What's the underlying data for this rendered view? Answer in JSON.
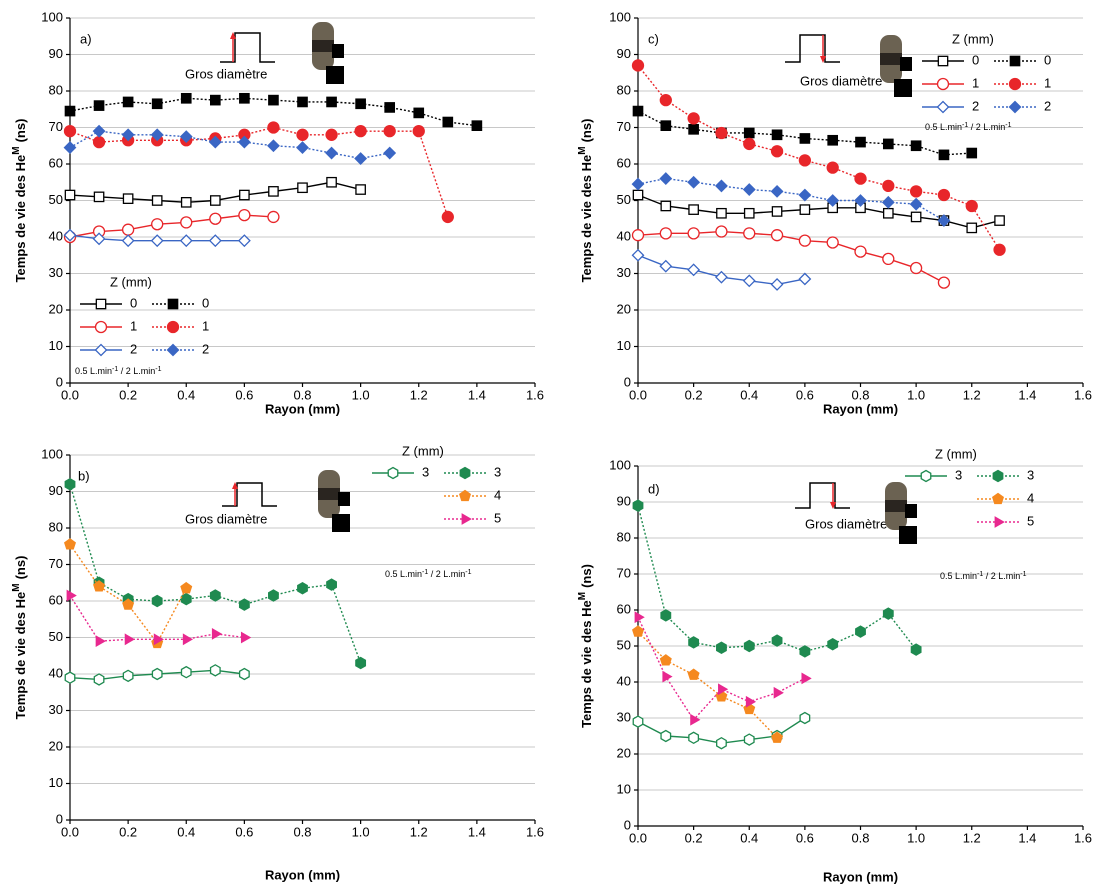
{
  "chart_data": [
    {
      "type": "line",
      "panel_label": "a)",
      "annotation": "Gros diamètre",
      "xlabel": "Rayon (mm)",
      "ylabel": "Temps de vie des He",
      "ylabel_superscript": "M",
      "ylabel_suffix": "(ns)",
      "legend_title": "Z (mm)",
      "note": [
        "0.5 L.min",
        "-1",
        " / 2 L.min",
        "-1"
      ],
      "pulse": "up",
      "xlim": [
        0,
        1.6
      ],
      "xticks": [
        {
          "value": 0,
          "label": "0.0"
        },
        0.2,
        0.4,
        0.6,
        0.8,
        {
          "value": 1,
          "label": "1.0"
        },
        1.2,
        1.4,
        1.6
      ],
      "ylim": [
        0,
        100
      ],
      "yticks": [
        0,
        10,
        20,
        30,
        40,
        50,
        60,
        70,
        80,
        90,
        100
      ],
      "grid": true,
      "series": [
        {
          "name": "0",
          "color": "#000000",
          "marker": "square",
          "filled": false,
          "dashed": false,
          "x": [
            0,
            0.1,
            0.2,
            0.3,
            0.4,
            0.5,
            0.6,
            0.7,
            0.8,
            0.9,
            1.0
          ],
          "values": [
            51.5,
            51,
            50.5,
            50,
            49.5,
            50,
            51.5,
            52.5,
            53.5,
            55,
            53
          ]
        },
        {
          "name": "0",
          "color": "#000000",
          "marker": "square",
          "filled": true,
          "dashed": true,
          "x": [
            0,
            0.1,
            0.2,
            0.3,
            0.4,
            0.5,
            0.6,
            0.7,
            0.8,
            0.9,
            1.0,
            1.1,
            1.2,
            1.3,
            1.4
          ],
          "values": [
            74.5,
            76,
            77,
            76.5,
            78,
            77.5,
            78,
            77.5,
            77,
            77,
            76.5,
            75.5,
            74,
            71.5,
            70.5
          ]
        },
        {
          "name": "1",
          "color": "#e8262a",
          "marker": "circle",
          "filled": false,
          "dashed": false,
          "x": [
            0,
            0.1,
            0.2,
            0.3,
            0.4,
            0.5,
            0.6,
            0.7
          ],
          "values": [
            40,
            41.5,
            42,
            43.5,
            44,
            45,
            46,
            45.5
          ]
        },
        {
          "name": "1",
          "color": "#e8262a",
          "marker": "circle",
          "filled": true,
          "dashed": true,
          "x": [
            0,
            0.1,
            0.2,
            0.3,
            0.4,
            0.5,
            0.6,
            0.7,
            0.8,
            0.9,
            1.0,
            1.1,
            1.2,
            1.3
          ],
          "values": [
            69,
            66,
            66.5,
            66.5,
            66.5,
            67,
            68,
            70,
            68,
            68,
            69,
            69,
            69,
            45.5
          ]
        },
        {
          "name": "2",
          "color": "#3a66c4",
          "marker": "diamond",
          "filled": false,
          "dashed": false,
          "x": [
            0,
            0.1,
            0.2,
            0.3,
            0.4,
            0.5,
            0.6
          ],
          "values": [
            40.5,
            39.5,
            39,
            39,
            39,
            39,
            39
          ]
        },
        {
          "name": "2",
          "color": "#3a66c4",
          "marker": "diamond",
          "filled": true,
          "dashed": true,
          "x": [
            0,
            0.1,
            0.2,
            0.3,
            0.4,
            0.5,
            0.6,
            0.7,
            0.8,
            0.9,
            1.0,
            1.1
          ],
          "values": [
            64.5,
            69,
            68,
            68,
            67.5,
            66,
            66,
            65,
            64.5,
            63,
            61.5,
            63
          ]
        }
      ]
    },
    {
      "type": "line",
      "panel_label": "b)",
      "annotation": "Gros diamètre",
      "xlabel": "Rayon (mm)",
      "ylabel": "Temps de vie des He",
      "ylabel_superscript": "M",
      "ylabel_suffix": "(ns)",
      "legend_title": "Z (mm)",
      "note": [
        "0.5 L.min",
        "-1",
        " / 2 L.min",
        "-1"
      ],
      "pulse": "up",
      "xlim": [
        0,
        1.6
      ],
      "xticks": [
        {
          "value": 0,
          "label": "0.0"
        },
        0.2,
        0.4,
        0.6,
        0.8,
        {
          "value": 1,
          "label": "1.0"
        },
        1.2,
        1.4,
        1.6
      ],
      "ylim": [
        0,
        100
      ],
      "yticks": [
        0,
        10,
        20,
        30,
        40,
        50,
        60,
        70,
        80,
        90,
        100
      ],
      "grid": true,
      "series": [
        {
          "name": "3",
          "color": "#1f8a50",
          "marker": "hexagon",
          "filled": false,
          "dashed": false,
          "x": [
            0,
            0.1,
            0.2,
            0.3,
            0.4,
            0.5,
            0.6
          ],
          "values": [
            39,
            38.5,
            39.5,
            40,
            40.5,
            41,
            40
          ]
        },
        {
          "name": "3",
          "color": "#1f8a50",
          "marker": "hexagon",
          "filled": true,
          "dashed": true,
          "x": [
            0,
            0.1,
            0.2,
            0.3,
            0.4,
            0.5,
            0.6,
            0.7,
            0.8,
            0.9,
            1.0
          ],
          "values": [
            92,
            65,
            60.5,
            60,
            60.5,
            61.5,
            59,
            61.5,
            63.5,
            64.5,
            43
          ]
        },
        {
          "name": "4",
          "color": "#f5891f",
          "marker": "pentagon",
          "filled": true,
          "dashed": true,
          "x": [
            0,
            0.1,
            0.2,
            0.3,
            0.4
          ],
          "values": [
            75.5,
            64,
            59,
            48.5,
            63.5
          ]
        },
        {
          "name": "5",
          "color": "#e8288f",
          "marker": "triangle",
          "filled": true,
          "dashed": true,
          "x": [
            0,
            0.1,
            0.2,
            0.3,
            0.4,
            0.5,
            0.6
          ],
          "values": [
            61.5,
            49,
            49.5,
            49.5,
            49.5,
            51,
            50
          ]
        }
      ]
    },
    {
      "type": "line",
      "panel_label": "c)",
      "annotation": "Gros diamètre",
      "xlabel": "Rayon (mm)",
      "ylabel": "Temps de vie des He",
      "ylabel_superscript": "M",
      "ylabel_suffix": "(ns)",
      "legend_title": "Z (mm)",
      "note": [
        "0.5 L.min",
        "-1",
        " / 2 L.min",
        "-1"
      ],
      "pulse": "down",
      "xlim": [
        0,
        1.6
      ],
      "xticks": [
        {
          "value": 0,
          "label": "0.0"
        },
        0.2,
        0.4,
        0.6,
        0.8,
        {
          "value": 1,
          "label": "1.0"
        },
        1.2,
        1.4,
        1.6
      ],
      "ylim": [
        0,
        100
      ],
      "yticks": [
        0,
        10,
        20,
        30,
        40,
        50,
        60,
        70,
        80,
        90,
        100
      ],
      "grid": true,
      "series": [
        {
          "name": "0",
          "color": "#000000",
          "marker": "square",
          "filled": false,
          "dashed": false,
          "x": [
            0,
            0.1,
            0.2,
            0.3,
            0.4,
            0.5,
            0.6,
            0.7,
            0.8,
            0.9,
            1.0,
            1.1,
            1.2,
            1.3
          ],
          "values": [
            51.5,
            48.5,
            47.5,
            46.5,
            46.5,
            47,
            47.5,
            48,
            48,
            46.5,
            45.5,
            44.5,
            42.5,
            44.5
          ]
        },
        {
          "name": "0",
          "color": "#000000",
          "marker": "square",
          "filled": true,
          "dashed": true,
          "x": [
            0,
            0.1,
            0.2,
            0.3,
            0.4,
            0.5,
            0.6,
            0.7,
            0.8,
            0.9,
            1.0,
            1.1,
            1.2
          ],
          "values": [
            74.5,
            70.5,
            69.5,
            68.5,
            68.5,
            68,
            67,
            66.5,
            66,
            65.5,
            65,
            62.5,
            63
          ]
        },
        {
          "name": "1",
          "color": "#e8262a",
          "marker": "circle",
          "filled": false,
          "dashed": false,
          "x": [
            0,
            0.1,
            0.2,
            0.3,
            0.4,
            0.5,
            0.6,
            0.7,
            0.8,
            0.9,
            1.0,
            1.1
          ],
          "values": [
            40.5,
            41,
            41,
            41.5,
            41,
            40.5,
            39,
            38.5,
            36,
            34,
            31.5,
            27.5
          ]
        },
        {
          "name": "1",
          "color": "#e8262a",
          "marker": "circle",
          "filled": true,
          "dashed": true,
          "x": [
            0,
            0.1,
            0.2,
            0.3,
            0.4,
            0.5,
            0.6,
            0.7,
            0.8,
            0.9,
            1.0,
            1.1,
            1.2,
            1.3
          ],
          "values": [
            87,
            77.5,
            72.5,
            68.5,
            65.5,
            63.5,
            61,
            59,
            56,
            54,
            52.5,
            51.5,
            48.5,
            36.5
          ]
        },
        {
          "name": "2",
          "color": "#3a66c4",
          "marker": "diamond",
          "filled": false,
          "dashed": false,
          "x": [
            0,
            0.1,
            0.2,
            0.3,
            0.4,
            0.5,
            0.6
          ],
          "values": [
            35,
            32,
            31,
            29,
            28,
            27,
            28.5
          ]
        },
        {
          "name": "2",
          "color": "#3a66c4",
          "marker": "diamond",
          "filled": true,
          "dashed": true,
          "x": [
            0,
            0.1,
            0.2,
            0.3,
            0.4,
            0.5,
            0.6,
            0.7,
            0.8,
            0.9,
            1.0,
            1.1
          ],
          "values": [
            54.5,
            56,
            55,
            54,
            53,
            52.5,
            51.5,
            50,
            50,
            49.5,
            49,
            44.5
          ]
        }
      ]
    },
    {
      "type": "line",
      "panel_label": "d)",
      "annotation": "Gros diamètre",
      "xlabel": "Rayon (mm)",
      "ylabel": "Temps de vie des He",
      "ylabel_superscript": "M",
      "ylabel_suffix": "(ns)",
      "legend_title": "Z (mm)",
      "note": [
        "0.5 L.min",
        "-1",
        " / 2 L.min",
        "-1"
      ],
      "pulse": "down",
      "xlim": [
        0,
        1.6
      ],
      "xticks": [
        {
          "value": 0,
          "label": "0.0"
        },
        0.2,
        0.4,
        0.6,
        0.8,
        {
          "value": 1,
          "label": "1.0"
        },
        1.2,
        1.4,
        1.6
      ],
      "ylim": [
        0,
        100
      ],
      "yticks": [
        0,
        10,
        20,
        30,
        40,
        50,
        60,
        70,
        80,
        90,
        100
      ],
      "grid": true,
      "series": [
        {
          "name": "3",
          "color": "#1f8a50",
          "marker": "hexagon",
          "filled": false,
          "dashed": false,
          "x": [
            0,
            0.1,
            0.2,
            0.3,
            0.4,
            0.5,
            0.6
          ],
          "values": [
            29,
            25,
            24.5,
            23,
            24,
            25,
            30
          ]
        },
        {
          "name": "3",
          "color": "#1f8a50",
          "marker": "hexagon",
          "filled": true,
          "dashed": true,
          "x": [
            0,
            0.1,
            0.2,
            0.3,
            0.4,
            0.5,
            0.6,
            0.7,
            0.8,
            0.9,
            1.0
          ],
          "values": [
            89,
            58.5,
            51,
            49.5,
            50,
            51.5,
            48.5,
            50.5,
            54,
            59,
            49
          ]
        },
        {
          "name": "4",
          "color": "#f5891f",
          "marker": "pentagon",
          "filled": true,
          "dashed": true,
          "x": [
            0,
            0.1,
            0.2,
            0.3,
            0.4,
            0.5
          ],
          "values": [
            54,
            46,
            42,
            36,
            32.5,
            24.5
          ]
        },
        {
          "name": "5",
          "color": "#e8288f",
          "marker": "triangle",
          "filled": true,
          "dashed": true,
          "x": [
            0,
            0.1,
            0.2,
            0.3,
            0.4,
            0.5,
            0.6
          ],
          "values": [
            58,
            41.5,
            29.5,
            38,
            34.5,
            37,
            41
          ]
        }
      ]
    }
  ]
}
